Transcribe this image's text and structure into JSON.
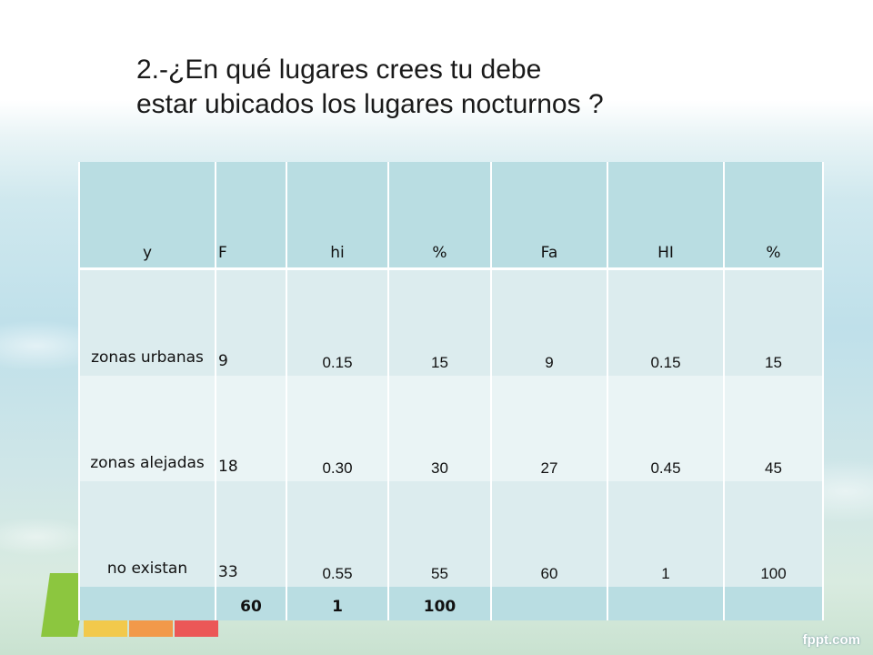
{
  "title": {
    "line1": "2.-¿En qué lugares crees tu debe",
    "line2": "estar ubicados los lugares nocturnos ?"
  },
  "table": {
    "headers": [
      "y",
      "F",
      "hi",
      "%",
      "Fa",
      "HI",
      "%"
    ],
    "rows": [
      {
        "label": "zonas urbanas",
        "F": "9",
        "hi": "0.15",
        "pct": "15",
        "Fa": "9",
        "HI": "0.15",
        "pct_acc": "15"
      },
      {
        "label": "zonas alejadas",
        "F": "18",
        "hi": "0.30",
        "pct": "30",
        "Fa": "27",
        "HI": "0.45",
        "pct_acc": "45"
      },
      {
        "label": "no existan",
        "F": "33",
        "hi": "0.55",
        "pct": "55",
        "Fa": "60",
        "HI": "1",
        "pct_acc": "100"
      }
    ],
    "totals": {
      "label": "",
      "F": "60",
      "hi": "1",
      "pct": "100",
      "Fa": "",
      "HI": "",
      "pct_acc": ""
    }
  },
  "footer": {
    "brand": "fppt.com"
  },
  "colors": {
    "header_bg": "#b9dde2",
    "row_odd_bg": "#dcecee",
    "row_even_bg": "#eaf4f5"
  }
}
